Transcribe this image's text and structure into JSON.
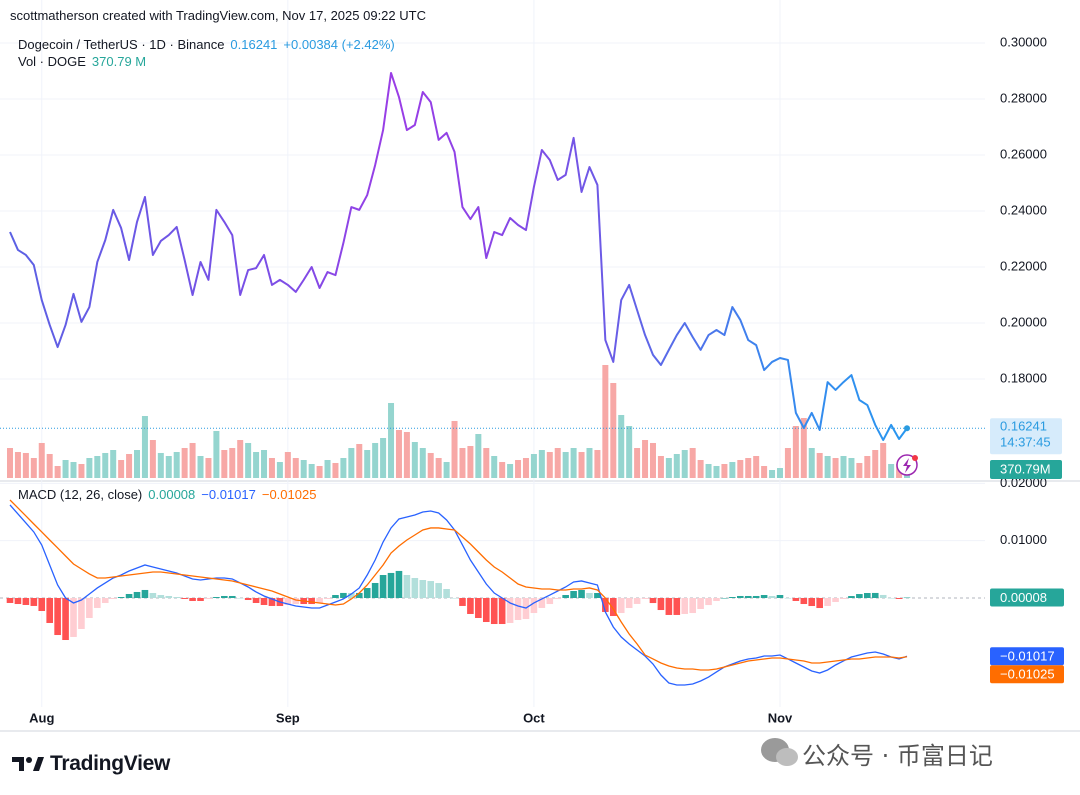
{
  "attribution": "scottmatherson created with TradingView.com, Nov 17, 2025 09:22 UTC",
  "brand": "TradingView",
  "watermark": "公众号 · 币富日记",
  "chart_data": {
    "type": "line",
    "title": "Dogecoin / TetherUS · 1D · Binance",
    "categories": [
      null,
      null,
      null,
      null,
      "Aug",
      null,
      null,
      null,
      null,
      null,
      null,
      null,
      null,
      null,
      null,
      null,
      null,
      null,
      null,
      null,
      null,
      null,
      null,
      null,
      null,
      null,
      null,
      null,
      null,
      null,
      null,
      null,
      null,
      null,
      null,
      "Sep",
      null,
      null,
      null,
      null,
      null,
      null,
      null,
      null,
      null,
      null,
      null,
      null,
      null,
      null,
      null,
      null,
      null,
      null,
      null,
      null,
      null,
      null,
      null,
      null,
      null,
      null,
      null,
      null,
      null,
      null,
      "Oct",
      null,
      null,
      null,
      null,
      null,
      null,
      null,
      null,
      null,
      null,
      null,
      null,
      null,
      null,
      null,
      null,
      null,
      null,
      null,
      null,
      null,
      null,
      null,
      null,
      null,
      null,
      null,
      null,
      null,
      null,
      "Nov",
      null,
      null,
      null,
      null,
      null,
      null,
      null,
      null,
      null,
      null,
      null,
      null,
      null,
      null,
      null,
      null
    ],
    "ylim": [
      0.14393,
      0.30464
    ],
    "yticks": [
      {
        "value": 0.3,
        "label": "0.30000"
      },
      {
        "value": 0.28,
        "label": "0.28000"
      },
      {
        "value": 0.26,
        "label": "0.26000"
      },
      {
        "value": 0.24,
        "label": "0.24000"
      },
      {
        "value": 0.22,
        "label": "0.22000"
      },
      {
        "value": 0.2,
        "label": "0.20000"
      },
      {
        "value": 0.18,
        "label": "0.18000"
      }
    ],
    "grid": true,
    "price": {
      "values": [
        0.2325,
        0.2261,
        0.2243,
        0.2207,
        0.2082,
        0.1993,
        0.1914,
        0.1993,
        0.2104,
        0.2004,
        0.2057,
        0.2218,
        0.2296,
        0.2404,
        0.2339,
        0.2225,
        0.2361,
        0.245,
        0.2243,
        0.2293,
        0.2314,
        0.2343,
        0.2225,
        0.21,
        0.2218,
        0.2154,
        0.2404,
        0.2361,
        0.2314,
        0.21,
        0.2189,
        0.2196,
        0.2243,
        0.2136,
        0.2154,
        0.2136,
        0.2111,
        0.2154,
        0.22,
        0.2125,
        0.2182,
        0.2171,
        0.2286,
        0.2414,
        0.2404,
        0.2457,
        0.2564,
        0.2689,
        0.2893,
        0.2807,
        0.2689,
        0.2707,
        0.2825,
        0.2789,
        0.2654,
        0.2679,
        0.2611,
        0.2414,
        0.2371,
        0.2414,
        0.2232,
        0.2325,
        0.2314,
        0.2375,
        0.235,
        0.2332,
        0.2486,
        0.2618,
        0.2582,
        0.2511,
        0.2529,
        0.2661,
        0.2468,
        0.2557,
        0.2493,
        0.1939,
        0.1861,
        0.2082,
        0.2136,
        0.2046,
        0.1957,
        0.1886,
        0.185,
        0.1904,
        0.1957,
        0.2,
        0.195,
        0.1904,
        0.1957,
        0.1975,
        0.1957,
        0.2057,
        0.2011,
        0.1939,
        0.1921,
        0.1832,
        0.1861,
        0.1875,
        0.1868,
        0.1679,
        0.1625,
        0.1679,
        0.1618,
        0.1789,
        0.1761,
        0.1789,
        0.1814,
        0.1725,
        0.1707,
        0.1636,
        0.1582,
        0.1636,
        0.15857,
        0.16241
      ],
      "change_label": "+0.00384 (+2.42%)",
      "countdown": "14:37:45",
      "color": "#2a9be0"
    },
    "volume": {
      "label": "Vol · DOGE",
      "values": [
        795,
        689,
        663,
        530,
        928,
        636,
        318,
        477,
        424,
        371,
        530,
        583,
        663,
        742,
        477,
        636,
        742,
        1643,
        1007,
        663,
        583,
        689,
        795,
        928,
        583,
        530,
        1246,
        742,
        795,
        1007,
        928,
        689,
        742,
        530,
        424,
        689,
        530,
        477,
        371,
        318,
        477,
        398,
        530,
        795,
        901,
        742,
        928,
        1060,
        1988,
        1272,
        1219,
        954,
        795,
        663,
        530,
        424,
        1511,
        795,
        848,
        1166,
        795,
        583,
        424,
        371,
        477,
        530,
        636,
        742,
        689,
        795,
        689,
        795,
        689,
        795,
        742,
        2995,
        2518,
        1670,
        1378,
        795,
        1007,
        928,
        583,
        530,
        636,
        742,
        795,
        477,
        371,
        318,
        371,
        424,
        477,
        530,
        583,
        318,
        212,
        265,
        795,
        1378,
        1590,
        795,
        663,
        583,
        530,
        583,
        530,
        398,
        583,
        742,
        928,
        371,
        371,
        370.79
      ],
      "last_label": "370.79 M",
      "tag_label": "370.79M",
      "up_color": "#95d5cf",
      "down_color": "#f7a8a6",
      "tag_color": "#26a69a"
    },
    "macd": {
      "label": "MACD (12, 26, close)",
      "ylim": [
        -0.01902,
        0.02024
      ],
      "yticks": [
        {
          "value": 0.02,
          "label": "0.02000"
        },
        {
          "value": 0.01,
          "label": "0.01000"
        }
      ],
      "histogram": [
        -0.00087,
        -0.00105,
        -0.00122,
        -0.00139,
        -0.00227,
        -0.00436,
        -0.00646,
        -0.00733,
        -0.0068,
        -0.00541,
        -0.00349,
        -0.00174,
        -0.00087,
        -0.00017,
        0.00017,
        0.0007,
        0.00105,
        0.0014,
        0.00087,
        0.00052,
        0.00035,
        0.00017,
        -0.00017,
        -0.00052,
        -0.00052,
        -0.00017,
        0.00017,
        0.00035,
        0.00035,
        0.0,
        -0.00035,
        -0.00087,
        -0.00122,
        -0.00139,
        -0.0014,
        -0.00122,
        -0.00105,
        -0.00105,
        -0.00105,
        -0.00088,
        -0.00017,
        0.00052,
        0.00088,
        0.00087,
        0.00088,
        0.00174,
        0.00262,
        0.00401,
        0.00437,
        0.00472,
        0.00401,
        0.00349,
        0.00314,
        0.00296,
        0.00261,
        0.00157,
        0.0,
        -0.00139,
        -0.00279,
        -0.00349,
        -0.00419,
        -0.00454,
        -0.00454,
        -0.00436,
        -0.00384,
        -0.00367,
        -0.00262,
        -0.00174,
        -0.00105,
        -0.00018,
        0.00052,
        0.00122,
        0.0014,
        0.00087,
        0.00087,
        -0.00244,
        -0.00314,
        -0.00262,
        -0.00175,
        -0.00104,
        -0.00017,
        -0.00088,
        -0.0021,
        -0.00296,
        -0.00296,
        -0.00279,
        -0.00262,
        -0.00192,
        -0.00123,
        -0.00052,
        0.0,
        0.00017,
        0.00035,
        0.00035,
        0.00035,
        0.00052,
        0.00035,
        0.00052,
        0.0,
        -0.00052,
        -0.00105,
        -0.0014,
        -0.00175,
        -0.00139,
        -0.0007,
        -0.00017,
        0.00034,
        0.00069,
        0.00087,
        0.00088,
        0.00053,
        0.0,
        -0.00017,
        8e-05
      ],
      "macd": [
        0.01623,
        0.01466,
        0.01309,
        0.01152,
        0.00925,
        0.00576,
        0.00227,
        0.0,
        -0.00087,
        -0.00035,
        0.0007,
        0.00175,
        0.00262,
        0.00349,
        0.00401,
        0.00471,
        0.00524,
        0.00576,
        0.00541,
        0.00506,
        0.00471,
        0.00436,
        0.00384,
        0.00332,
        0.00314,
        0.00332,
        0.00349,
        0.00349,
        0.00332,
        0.00262,
        0.00192,
        0.00105,
        0.00035,
        -0.00017,
        -0.0007,
        -0.00105,
        -0.0014,
        -0.00157,
        -0.00175,
        -0.00175,
        -0.00122,
        -0.0007,
        -0.00017,
        0.0007,
        0.00175,
        0.00401,
        0.00663,
        0.00977,
        0.01222,
        0.01379,
        0.01413,
        0.01448,
        0.01501,
        0.01518,
        0.01483,
        0.01361,
        0.01187,
        0.00925,
        0.00663,
        0.00454,
        0.00244,
        0.00087,
        0.0,
        -0.00087,
        -0.0014,
        -0.00175,
        -0.00087,
        -0.00017,
        0.00052,
        0.00122,
        0.00192,
        0.00279,
        0.00297,
        0.00262,
        0.00227,
        -0.00244,
        -0.00506,
        -0.00681,
        -0.00803,
        -0.00907,
        -0.01012,
        -0.01152,
        -0.01344,
        -0.01483,
        -0.01518,
        -0.01518,
        -0.01501,
        -0.01448,
        -0.01379,
        -0.01291,
        -0.01204,
        -0.01152,
        -0.01099,
        -0.01064,
        -0.01047,
        -0.01012,
        -0.01012,
        -0.00995,
        -0.01064,
        -0.01134,
        -0.01204,
        -0.01274,
        -0.01309,
        -0.01256,
        -0.01169,
        -0.01099,
        -0.0103,
        -0.00995,
        -0.0096,
        -0.00942,
        -0.00977,
        -0.0103,
        -0.01064,
        -0.01017
      ],
      "signal": [
        0.0171,
        0.01571,
        0.01431,
        0.01291,
        0.01152,
        0.01012,
        0.00873,
        0.00733,
        0.00593,
        0.00506,
        0.00419,
        0.00349,
        0.00349,
        0.00366,
        0.00384,
        0.00401,
        0.00419,
        0.00436,
        0.00454,
        0.00454,
        0.00436,
        0.00419,
        0.00401,
        0.00384,
        0.00366,
        0.00349,
        0.00332,
        0.00314,
        0.00297,
        0.00262,
        0.00227,
        0.00192,
        0.00157,
        0.00122,
        0.0007,
        0.00017,
        -0.00035,
        -0.00052,
        -0.0007,
        -0.00087,
        -0.00105,
        -0.00122,
        -0.00105,
        -0.00017,
        0.00087,
        0.00227,
        0.00401,
        0.00576,
        0.00785,
        0.00907,
        0.01012,
        0.01099,
        0.01187,
        0.01222,
        0.01222,
        0.01204,
        0.01187,
        0.01064,
        0.00942,
        0.00803,
        0.00663,
        0.00541,
        0.00454,
        0.00349,
        0.00244,
        0.00192,
        0.00175,
        0.00157,
        0.00157,
        0.0014,
        0.0014,
        0.00157,
        0.00157,
        0.00175,
        0.0014,
        0.0,
        -0.00192,
        -0.00419,
        -0.00628,
        -0.00803,
        -0.00995,
        -0.01064,
        -0.01134,
        -0.01187,
        -0.01222,
        -0.01239,
        -0.01239,
        -0.01256,
        -0.01256,
        -0.01239,
        -0.01204,
        -0.01169,
        -0.01134,
        -0.01099,
        -0.01082,
        -0.01064,
        -0.01047,
        -0.01047,
        -0.01064,
        -0.01082,
        -0.01099,
        -0.01134,
        -0.01134,
        -0.01117,
        -0.01099,
        -0.01082,
        -0.01064,
        -0.01064,
        -0.01047,
        -0.0103,
        -0.0103,
        -0.0103,
        -0.01047,
        -0.01025
      ],
      "histogram_label": "0.00008",
      "macd_label": "−0.01017",
      "signal_label": "−0.01025",
      "macd_color": "#2962ff",
      "signal_color": "#ff6d00",
      "histogram_colors": {
        "up_rising": "#26a69a",
        "up_falling": "#b2dfdb",
        "down_falling": "#ff5252",
        "down_rising": "#ffcdd2"
      }
    }
  }
}
